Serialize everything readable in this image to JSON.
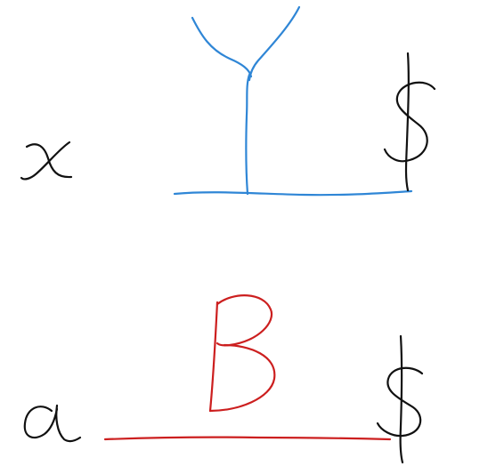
{
  "colors": {
    "background": "#ffffff",
    "ink": "#111111",
    "blue": "#2f86d6",
    "red": "#cc1f1f"
  },
  "rows": [
    {
      "variable": "x",
      "symbol": "Y",
      "end_marker": "$",
      "symbol_color": "#2f86d6",
      "line_color": "#2f86d6"
    },
    {
      "variable": "a",
      "symbol": "B",
      "end_marker": "$",
      "symbol_color": "#cc1f1f",
      "line_color": "#cc1f1f"
    }
  ]
}
